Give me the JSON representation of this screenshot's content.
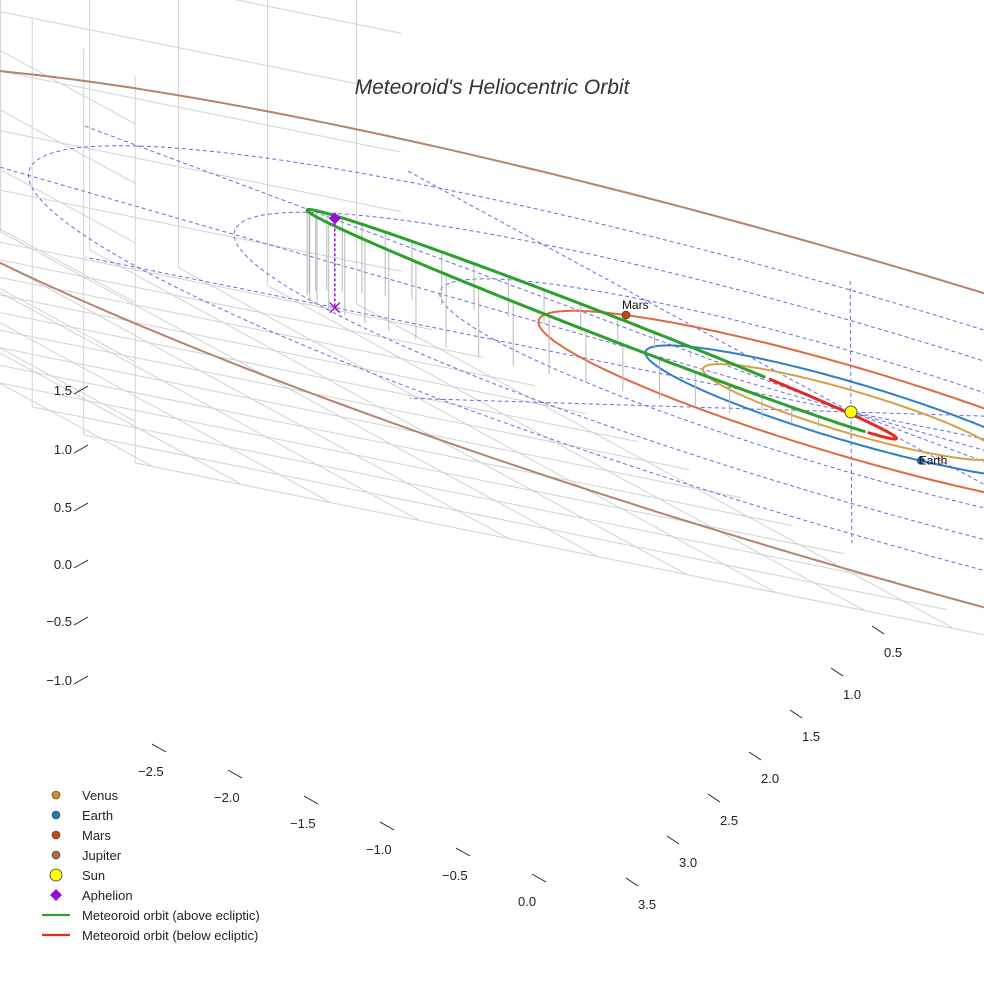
{
  "chart_data": {
    "type": "scatter",
    "title": "Meteoroid's Heliocentric Orbit",
    "axes": {
      "x_ticks": [
        "−2.5",
        "−2.0",
        "−1.5",
        "−1.0",
        "−0.5",
        "0.0"
      ],
      "y_ticks": [
        "0.5",
        "1.0",
        "1.5",
        "2.0",
        "2.5",
        "3.0",
        "3.5"
      ],
      "z_ticks": [
        "−1.0",
        "−0.5",
        "0.0",
        "0.5",
        "1.0",
        "1.5"
      ],
      "grid": true
    },
    "planets": [
      {
        "name": "Venus",
        "color": "#d4a04a",
        "orbit_radius": 0.72
      },
      {
        "name": "Earth",
        "color": "#2f7fc7",
        "orbit_radius": 1.0
      },
      {
        "name": "Mars",
        "color": "#e06a40",
        "orbit_radius": 1.52
      },
      {
        "name": "Jupiter",
        "color": "#b8836a",
        "orbit_radius": 5.2
      }
    ],
    "point_labels": {
      "earth": "Earth",
      "mars": "Mars"
    },
    "sun": {
      "name": "Sun",
      "x": 0,
      "y": 0,
      "z": 0,
      "color": "#ffff00"
    },
    "meteoroid_orbit": {
      "perihelion_distance": 0.2,
      "aphelion": {
        "x": -2.9,
        "y": 0.0,
        "z": 0.75
      },
      "above_color": "#2ca02c",
      "below_color": "#e8271f"
    },
    "legend": [
      {
        "label": "Venus",
        "marker": "circle",
        "color": "#d48a2a"
      },
      {
        "label": "Earth",
        "marker": "circle",
        "color": "#1f77b4"
      },
      {
        "label": "Mars",
        "marker": "circle",
        "color": "#c8451a"
      },
      {
        "label": "Jupiter",
        "marker": "circle",
        "color": "#b06a40"
      },
      {
        "label": "Sun",
        "marker": "big-circle",
        "color": "#ffff00"
      },
      {
        "label": "Aphelion",
        "marker": "diamond",
        "color": "#9b10d4"
      },
      {
        "label": "Meteoroid orbit (above ecliptic)",
        "marker": "line",
        "color": "#2ca02c"
      },
      {
        "label": "Meteoroid orbit (below ecliptic)",
        "marker": "line",
        "color": "#e8271f"
      }
    ],
    "legend_placement": "bottom-left"
  }
}
